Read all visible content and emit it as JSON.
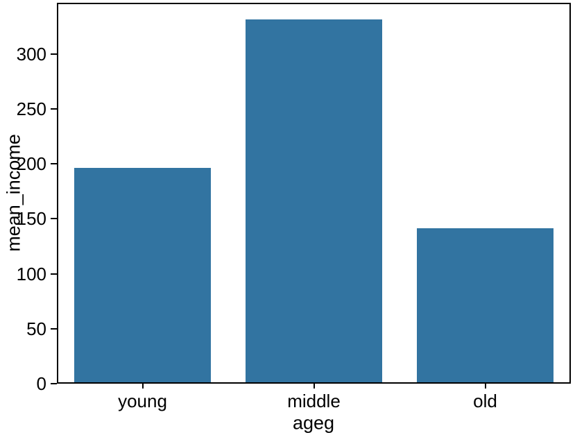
{
  "chart_data": {
    "type": "bar",
    "categories": [
      "young",
      "middle",
      "old"
    ],
    "values": [
      195,
      330,
      140
    ],
    "title": "",
    "xlabel": "ageg",
    "ylabel": "mean_income",
    "ylim": [
      0,
      346.5
    ],
    "yticks": [
      0,
      50,
      100,
      150,
      200,
      250,
      300
    ],
    "bar_color": "#3274a1",
    "bar_width_fraction": 0.8,
    "spine_color": "#000000",
    "grid": false,
    "legend": false
  }
}
